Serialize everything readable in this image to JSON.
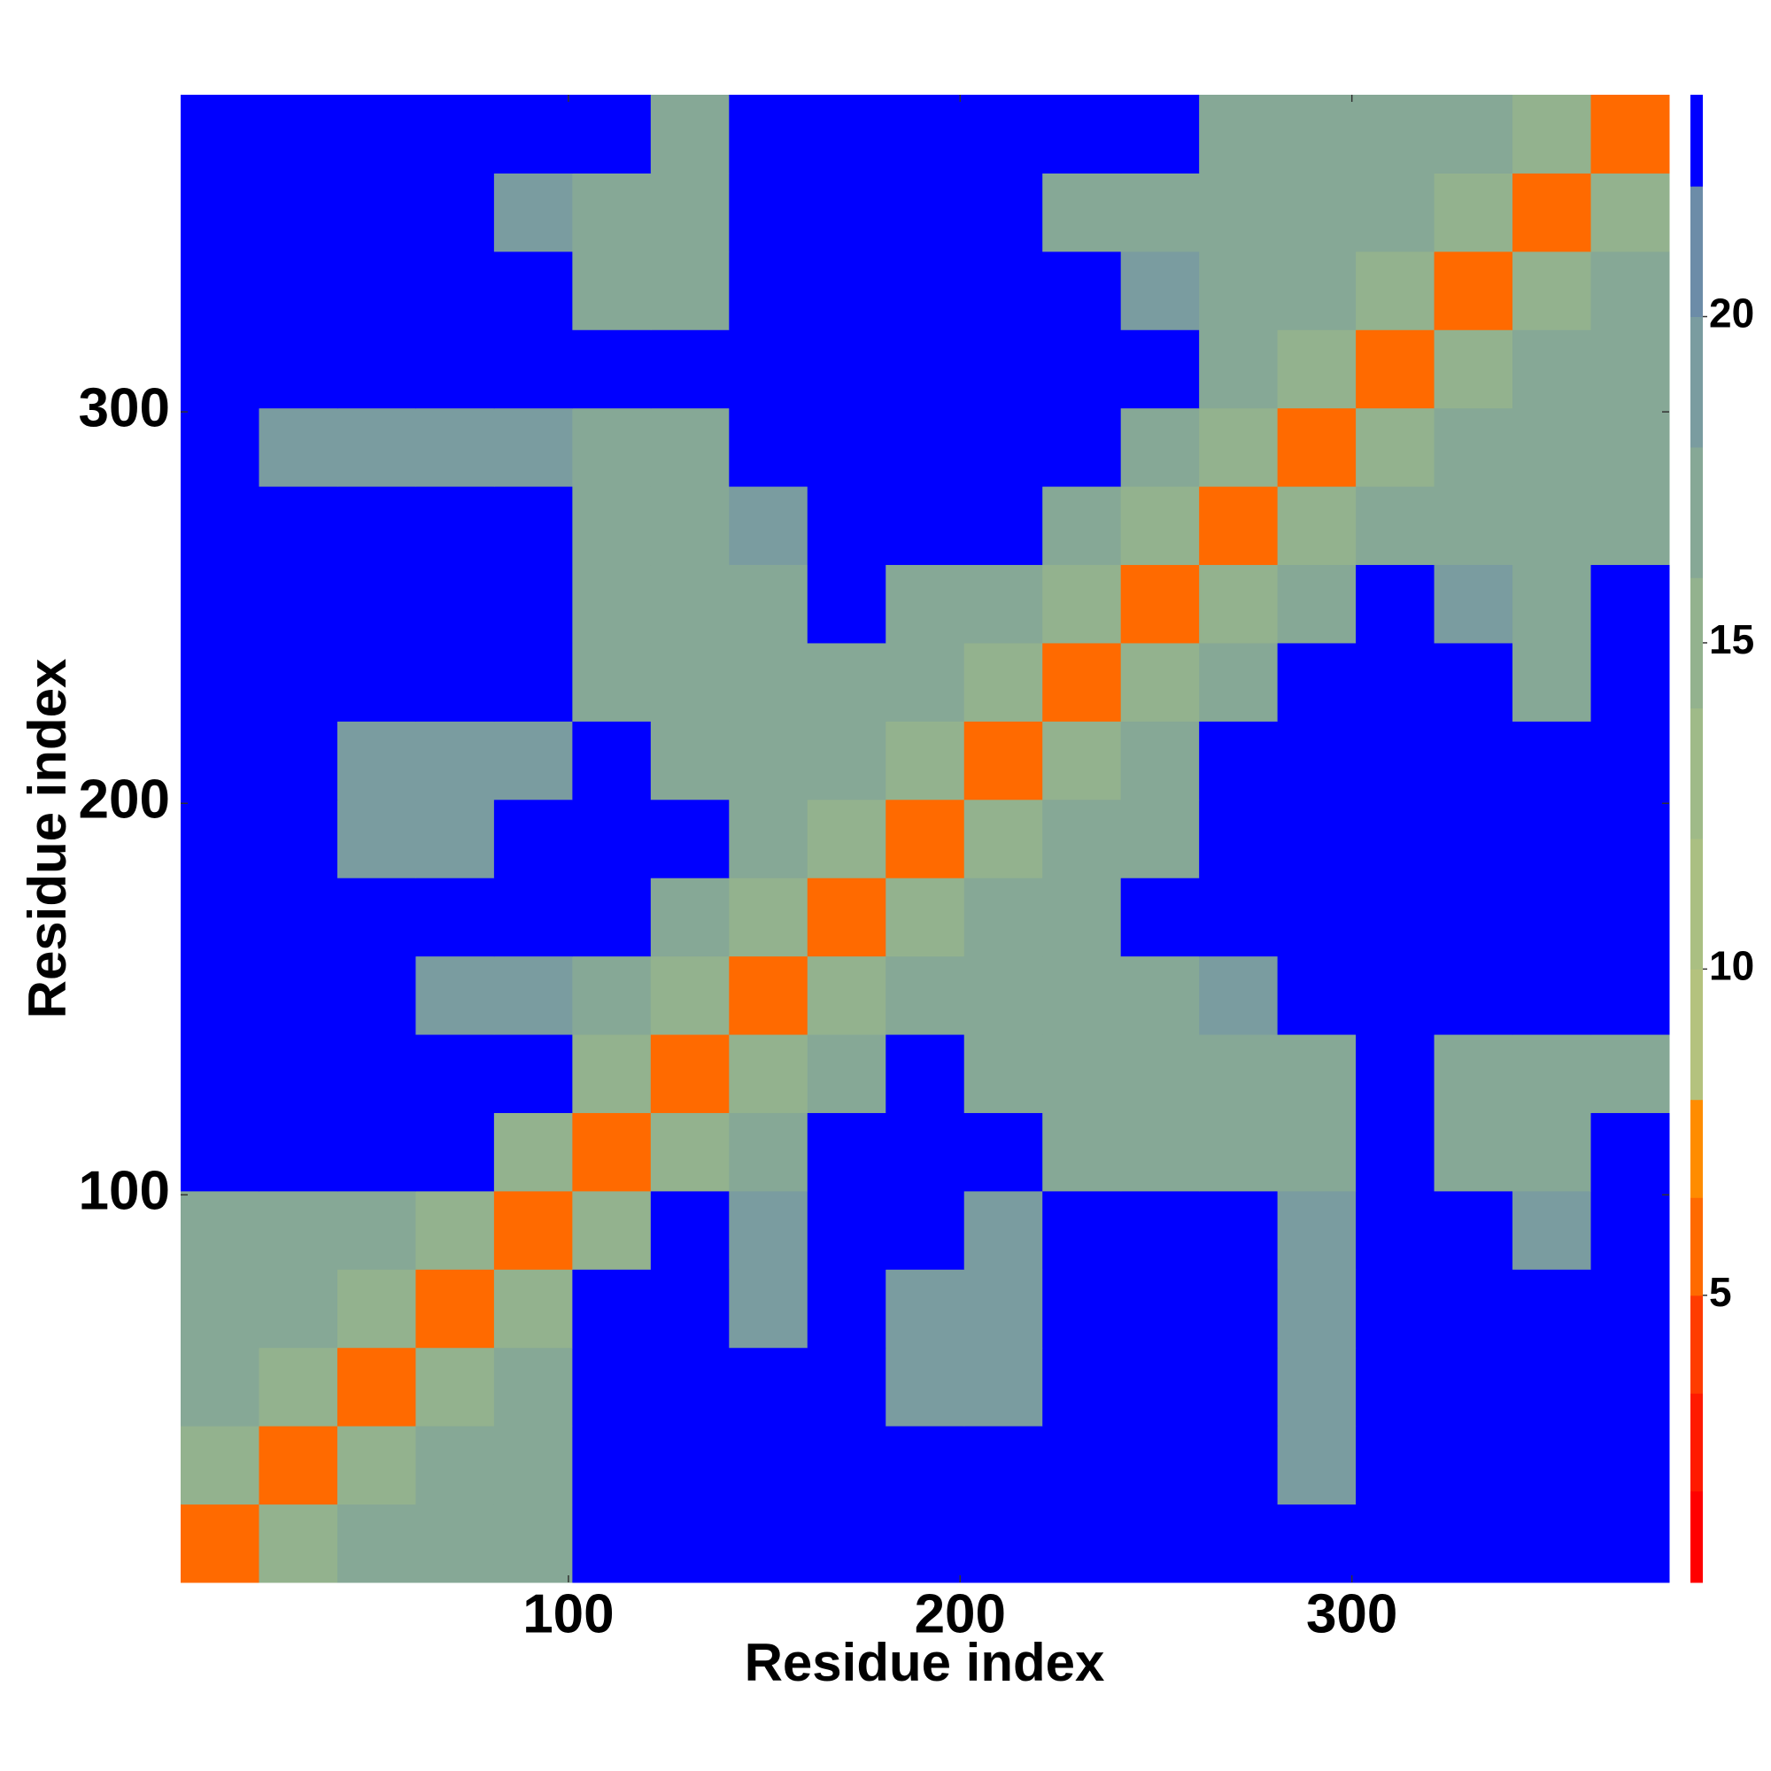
{
  "chart_data": {
    "type": "heatmap",
    "x_label": "Residue index",
    "y_label": "Residue index",
    "x_bins": [
      1,
      21,
      41,
      61,
      81,
      101,
      121,
      141,
      161,
      181,
      201,
      221,
      241,
      261,
      281,
      301,
      321,
      341,
      361,
      381
    ],
    "y_bins": [
      1,
      21,
      41,
      61,
      81,
      101,
      121,
      141,
      161,
      181,
      201,
      221,
      241,
      261,
      281,
      301,
      321,
      341,
      361,
      381
    ],
    "xlim": [
      1,
      381
    ],
    "ylim": [
      1,
      381
    ],
    "xticks": [
      100,
      200,
      300
    ],
    "yticks": [
      100,
      200,
      300
    ],
    "values": [
      [
        6,
        14,
        16,
        16,
        16,
        24,
        24,
        24,
        24,
        24,
        24,
        24,
        24,
        24,
        24,
        24,
        24,
        24,
        24
      ],
      [
        14,
        6,
        14,
        16,
        16,
        24,
        24,
        24,
        24,
        24,
        24,
        24,
        24,
        24,
        18,
        24,
        24,
        24,
        24
      ],
      [
        16,
        14,
        6,
        14,
        16,
        24,
        24,
        24,
        24,
        18,
        18,
        24,
        24,
        24,
        18,
        24,
        24,
        24,
        24
      ],
      [
        16,
        16,
        14,
        6,
        14,
        24,
        24,
        18,
        24,
        18,
        18,
        24,
        24,
        24,
        18,
        24,
        24,
        24,
        24
      ],
      [
        16,
        16,
        16,
        14,
        6,
        14,
        24,
        18,
        24,
        24,
        18,
        24,
        24,
        24,
        18,
        24,
        24,
        18,
        24
      ],
      [
        24,
        24,
        24,
        24,
        14,
        6,
        14,
        16,
        24,
        24,
        24,
        16,
        16,
        16,
        16,
        24,
        16,
        16,
        24
      ],
      [
        24,
        24,
        24,
        24,
        24,
        14,
        6,
        14,
        16,
        24,
        16,
        16,
        16,
        16,
        16,
        24,
        16,
        16,
        16
      ],
      [
        24,
        24,
        24,
        18,
        18,
        16,
        14,
        6,
        14,
        16,
        16,
        16,
        16,
        18,
        24,
        24,
        24,
        24,
        24
      ],
      [
        24,
        24,
        24,
        24,
        24,
        24,
        16,
        14,
        6,
        14,
        16,
        16,
        24,
        24,
        24,
        24,
        24,
        24,
        24
      ],
      [
        24,
        24,
        18,
        18,
        24,
        24,
        24,
        16,
        14,
        6,
        14,
        16,
        16,
        24,
        24,
        24,
        24,
        24,
        24
      ],
      [
        24,
        24,
        18,
        18,
        18,
        24,
        16,
        16,
        16,
        14,
        6,
        14,
        16,
        24,
        24,
        24,
        24,
        24,
        24
      ],
      [
        24,
        24,
        24,
        24,
        24,
        16,
        16,
        16,
        16,
        16,
        14,
        6,
        14,
        16,
        24,
        24,
        24,
        16,
        24
      ],
      [
        24,
        24,
        24,
        24,
        24,
        16,
        16,
        16,
        24,
        16,
        16,
        14,
        6,
        14,
        16,
        24,
        18,
        16,
        24
      ],
      [
        24,
        24,
        24,
        24,
        24,
        16,
        16,
        18,
        24,
        24,
        24,
        16,
        14,
        6,
        14,
        16,
        16,
        16,
        16
      ],
      [
        24,
        18,
        18,
        18,
        18,
        16,
        16,
        24,
        24,
        24,
        24,
        24,
        16,
        14,
        6,
        14,
        16,
        16,
        16
      ],
      [
        24,
        24,
        24,
        24,
        24,
        24,
        24,
        24,
        24,
        24,
        24,
        24,
        24,
        16,
        14,
        6,
        14,
        16,
        16
      ],
      [
        24,
        24,
        24,
        24,
        24,
        16,
        16,
        24,
        24,
        24,
        24,
        24,
        18,
        16,
        16,
        14,
        6,
        14,
        16
      ],
      [
        24,
        24,
        24,
        24,
        18,
        16,
        16,
        24,
        24,
        24,
        24,
        16,
        16,
        16,
        16,
        16,
        14,
        6,
        14
      ],
      [
        24,
        24,
        24,
        24,
        24,
        24,
        16,
        24,
        24,
        24,
        24,
        24,
        24,
        16,
        16,
        16,
        16,
        14,
        6
      ]
    ],
    "colorbar": {
      "lim": [
        0.6,
        23.4
      ],
      "ticks": [
        5,
        10,
        15,
        20
      ],
      "levels": [
        0.6,
        2,
        3.5,
        5,
        6.5,
        8,
        10,
        12,
        14,
        16,
        18,
        20,
        22,
        23.4
      ],
      "colors": [
        "#ff0000",
        "#ff1a00",
        "#ff3c00",
        "#ff6a00",
        "#ff8c00",
        "#b4c27e",
        "#aabf82",
        "#9fba88",
        "#93b28e",
        "#86a896",
        "#7a9ca0",
        "#6c8ca8",
        "#0000ff"
      ]
    }
  }
}
